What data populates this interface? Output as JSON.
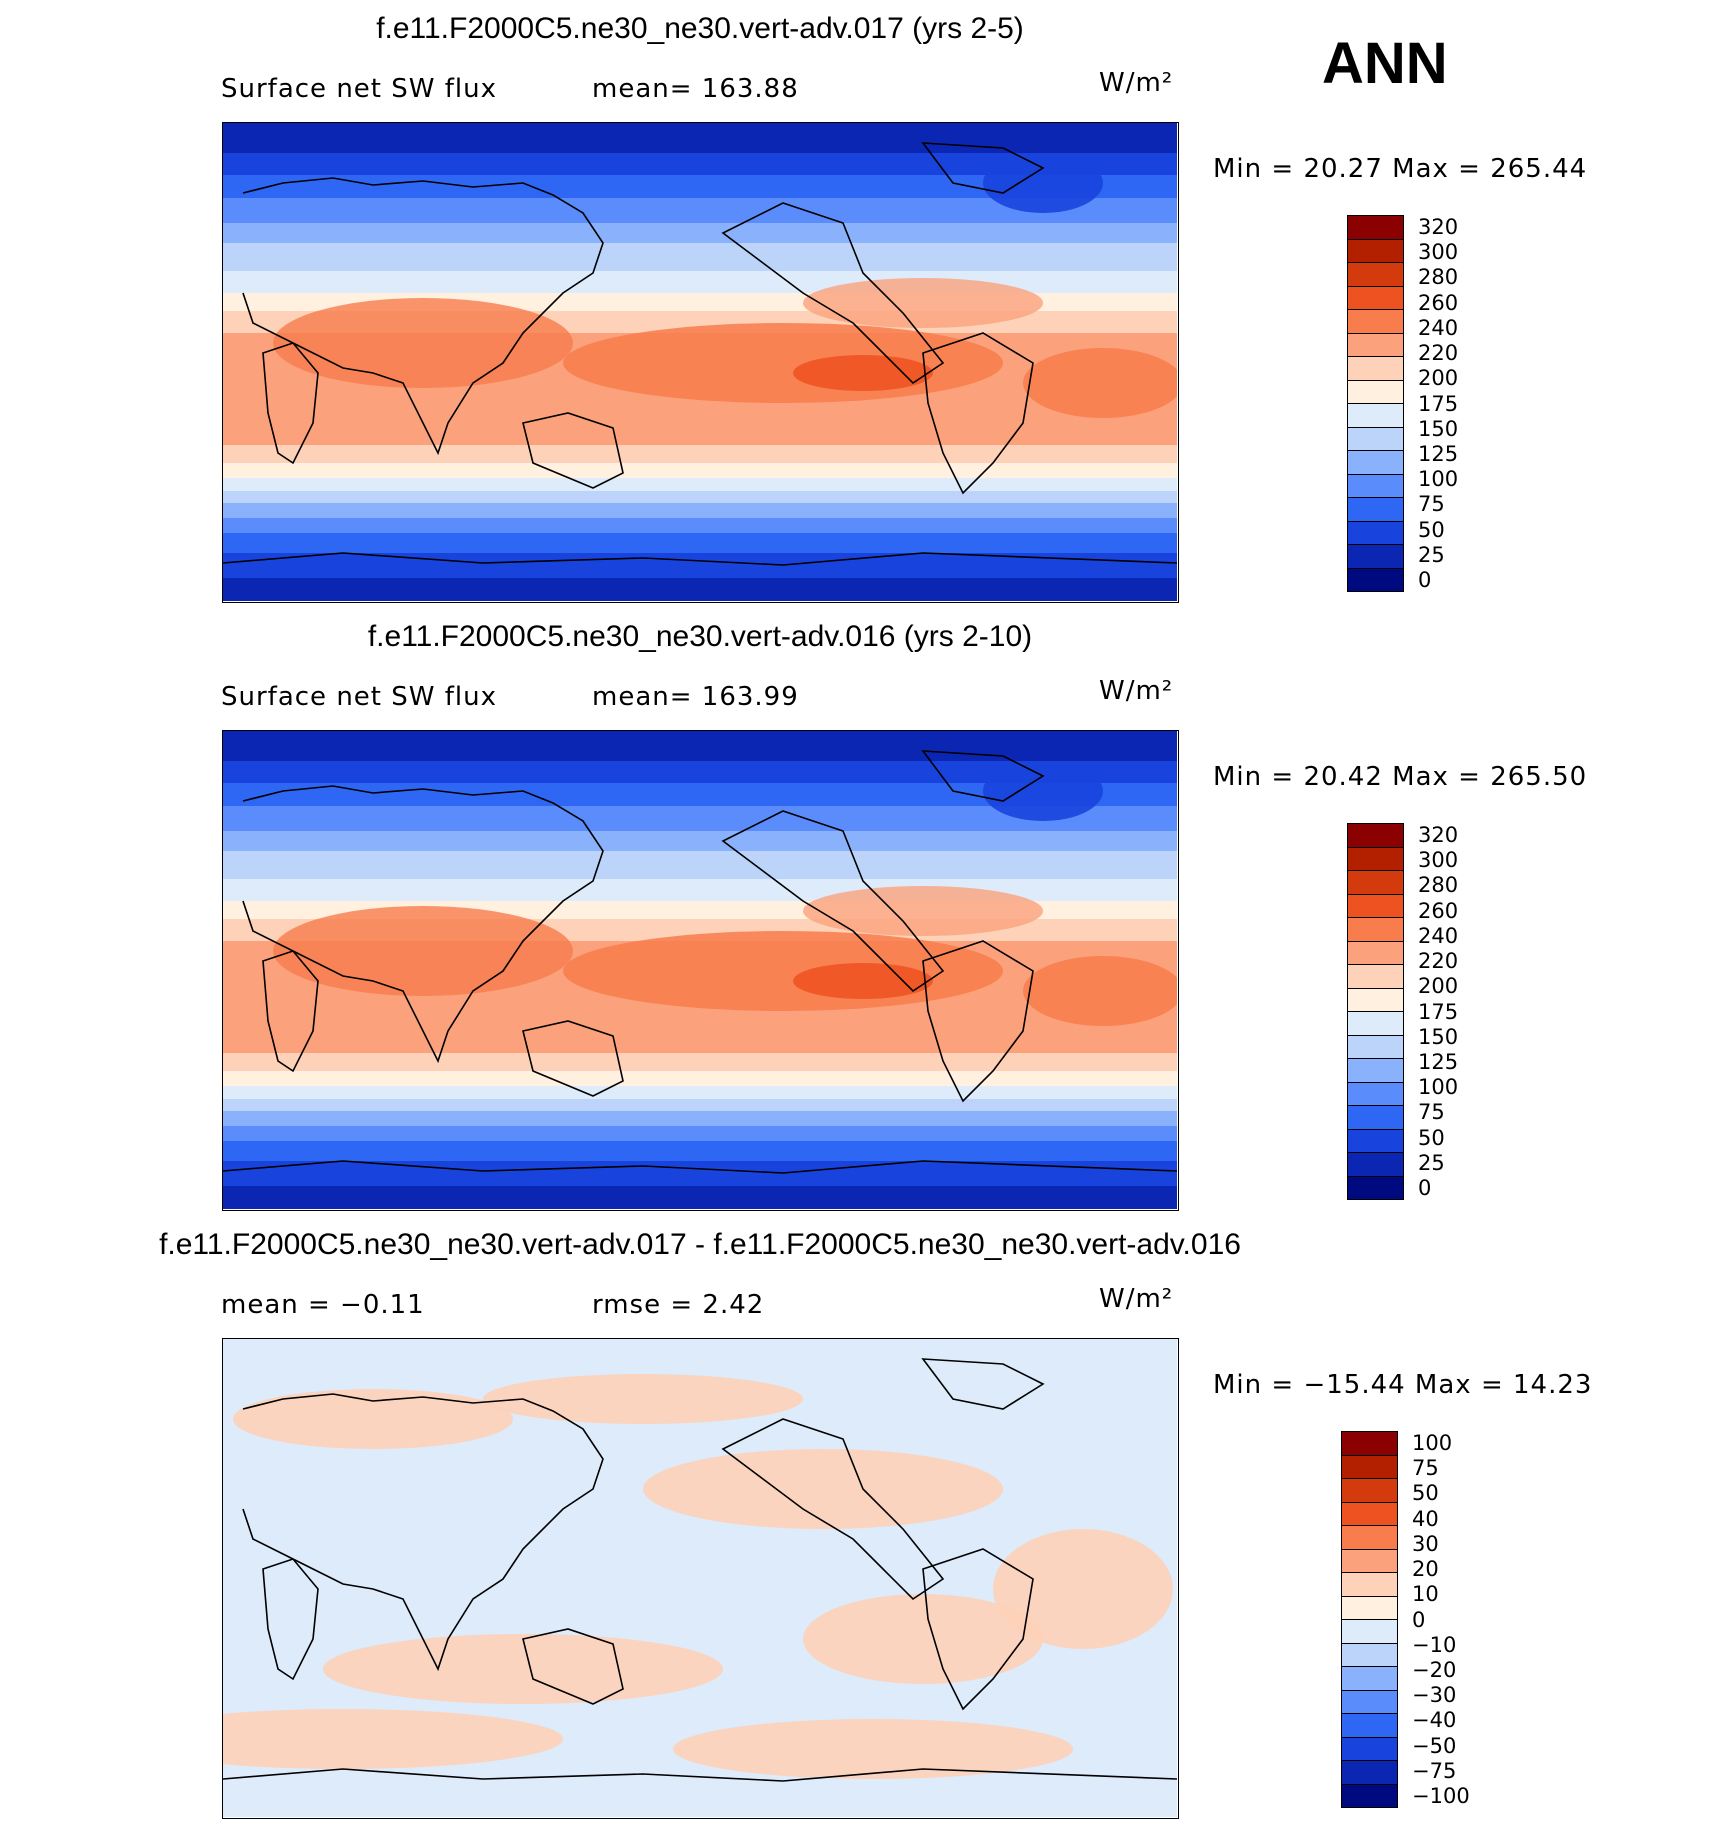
{
  "header": {
    "season": "ANN"
  },
  "panels": [
    {
      "id": "p1",
      "title": "f.e11.F2000C5.ne30_ne30.vert-adv.017 (yrs 2-5)",
      "left_label": "Surface net SW flux",
      "mid_label": "mean=  163.88",
      "units": "W/m²",
      "minmax": "Min =   20.27  Max  =  265.44",
      "legend": {
        "labels": [
          "320",
          "300",
          "280",
          "260",
          "240",
          "220",
          "200",
          "175",
          "150",
          "125",
          "100",
          "75",
          "50",
          "25",
          "0"
        ],
        "colors": [
          "#8b0000",
          "#b22000",
          "#d33a0e",
          "#ee5220",
          "#f87c4c",
          "#fba27c",
          "#fdd2b8",
          "#fff0e0",
          "#ddebfb",
          "#bcd4fa",
          "#8ab1fb",
          "#5a8dfb",
          "#2f67f5",
          "#1844dd",
          "#0a26b3",
          "#000a80"
        ]
      }
    },
    {
      "id": "p2",
      "title": "f.e11.F2000C5.ne30_ne30.vert-adv.016 (yrs 2-10)",
      "left_label": "Surface net SW flux",
      "mid_label": "mean=  163.99",
      "units": "W/m²",
      "minmax": "Min =   20.42  Max  =  265.50",
      "legend": {
        "labels": [
          "320",
          "300",
          "280",
          "260",
          "240",
          "220",
          "200",
          "175",
          "150",
          "125",
          "100",
          "75",
          "50",
          "25",
          "0"
        ],
        "colors": [
          "#8b0000",
          "#b22000",
          "#d33a0e",
          "#ee5220",
          "#f87c4c",
          "#fba27c",
          "#fdd2b8",
          "#fff0e0",
          "#ddebfb",
          "#bcd4fa",
          "#8ab1fb",
          "#5a8dfb",
          "#2f67f5",
          "#1844dd",
          "#0a26b3",
          "#000a80"
        ]
      }
    },
    {
      "id": "p3",
      "title": "f.e11.F2000C5.ne30_ne30.vert-adv.017 - f.e11.F2000C5.ne30_ne30.vert-adv.016",
      "left_label": "mean =    −0.11",
      "mid_label": "rmse =     2.42",
      "units": "W/m²",
      "minmax": "Min = −15.44  Max  =   14.23",
      "legend": {
        "labels": [
          "100",
          "75",
          "50",
          "40",
          "30",
          "20",
          "10",
          "0",
          "−10",
          "−20",
          "−30",
          "−40",
          "−50",
          "−75",
          "−100"
        ],
        "colors": [
          "#8b0000",
          "#b22000",
          "#d33a0e",
          "#ee5220",
          "#f87c4c",
          "#fba27c",
          "#fdd2b8",
          "#fff0e0",
          "#ddebfb",
          "#bcd4fa",
          "#8ab1fb",
          "#5a8dfb",
          "#2f67f5",
          "#1844dd",
          "#0a26b3",
          "#000a80"
        ]
      }
    }
  ]
}
